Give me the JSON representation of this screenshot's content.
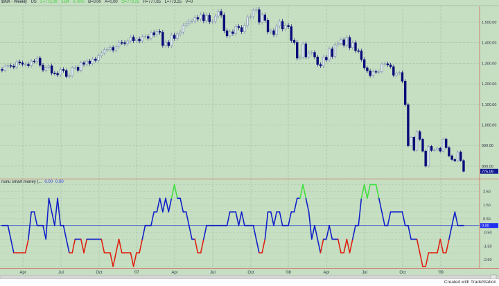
{
  "header": {
    "symbol": "$INX - Weekly",
    "exchange": "US",
    "last": "L=775.09",
    "change": "5.84",
    "change_pct": "0.76%",
    "bid": "B=0.00",
    "ask": "A=0.00",
    "open": "O=773.25",
    "high": "H=777.85",
    "low": "L=773.25",
    "volume": "V=0"
  },
  "indicator_header": {
    "name": "nunu smart money (...",
    "value1": "0.00",
    "value2": "0.00"
  },
  "footer": {
    "credit": "Created with TradeStation"
  },
  "colors": {
    "background": "#c6dec2",
    "down_candle": "#0a0a7a",
    "up_candle": "#7f8fb0",
    "indicator_line": "#1020c8",
    "indicator_low": "#e02010",
    "indicator_high": "#40e040",
    "zero_line": "#4060d0",
    "panel_border": "#d08070"
  },
  "chart_data": [
    {
      "type": "candlestick",
      "title": "$INX - Weekly",
      "period": "weekly",
      "x_tick_labels": [
        "Apr",
        "Jul",
        "Oct",
        "'07",
        "Apr",
        "Jul",
        "Oct",
        "'08",
        "Apr",
        "Jul",
        "Oct",
        "'09"
      ],
      "y_tick_labels": [
        "1,500.00",
        "1,400.00",
        "1,300.00",
        "1,200.00",
        "1,100.00",
        "1,000.00",
        "900.00",
        "800.00"
      ],
      "ylim": [
        750,
        1590
      ],
      "last_value_label": "775.09",
      "grid": true,
      "closes": [
        1266,
        1287,
        1289,
        1287,
        1281,
        1307,
        1302,
        1295,
        1295,
        1289,
        1311,
        1310,
        1325,
        1291,
        1267,
        1280,
        1288,
        1252,
        1251,
        1244,
        1270,
        1265,
        1236,
        1240,
        1278,
        1280,
        1266,
        1302,
        1295,
        1311,
        1299,
        1321,
        1314,
        1336,
        1350,
        1366,
        1368,
        1377,
        1364,
        1380,
        1401,
        1400,
        1396,
        1409,
        1427,
        1410,
        1418,
        1409,
        1430,
        1430,
        1422,
        1449,
        1438,
        1455,
        1451,
        1387,
        1402,
        1386,
        1437,
        1421,
        1443,
        1452,
        1484,
        1495,
        1505,
        1505,
        1522,
        1515,
        1536,
        1507,
        1533,
        1502,
        1503,
        1530,
        1552,
        1534,
        1458,
        1433,
        1453,
        1445,
        1479,
        1474,
        1454,
        1484,
        1525,
        1527,
        1557,
        1561,
        1500,
        1535,
        1509,
        1453,
        1458,
        1440,
        1481,
        1504,
        1467,
        1484,
        1478,
        1411,
        1401,
        1325,
        1330,
        1395,
        1331,
        1349,
        1353,
        1331,
        1294,
        1288,
        1330,
        1316,
        1370,
        1333,
        1390,
        1398,
        1414,
        1388,
        1425,
        1376,
        1400,
        1361,
        1360,
        1318,
        1278,
        1263,
        1240,
        1260,
        1257,
        1260,
        1297,
        1298,
        1292,
        1283,
        1242,
        1252,
        1255,
        1213,
        1099,
        899,
        940,
        877,
        968,
        930,
        873,
        800,
        896,
        876,
        879,
        887,
        873,
        931,
        890,
        850,
        832,
        826,
        869,
        827,
        775.09
      ]
    },
    {
      "type": "line",
      "title": "nunu smart money (...",
      "y_tick_labels": [
        "2.50",
        "1.50",
        "0.50",
        "-0.50",
        "-1.50",
        "-2.50"
      ],
      "ylim": [
        -3.1,
        3.1
      ],
      "last_value_label": "0.00",
      "grid": true,
      "values": [
        0,
        0,
        0,
        -1,
        -2,
        -2,
        -2,
        -2,
        -2,
        -1,
        1,
        1,
        0,
        0,
        0,
        -1,
        2,
        1,
        0,
        2,
        0,
        0,
        -1,
        -2,
        -2,
        -1,
        -1,
        -1,
        -2,
        -1,
        -1,
        -1,
        -1,
        -1,
        -1,
        -2,
        -2,
        -2,
        -3,
        -2,
        -1,
        -2,
        -2,
        -2,
        -2,
        -3,
        -2,
        -2,
        -1,
        0,
        0,
        0,
        1,
        1,
        2,
        1,
        2,
        1,
        2,
        3,
        2,
        2,
        1,
        1,
        0,
        -1,
        -1,
        -2,
        -2,
        -1,
        0,
        0,
        0,
        0,
        0,
        0,
        0,
        0,
        1,
        1,
        1,
        0,
        1,
        0,
        0,
        0,
        0,
        -1,
        -2,
        -2,
        -1,
        1,
        1,
        0,
        1,
        1,
        0,
        0,
        0,
        1,
        1,
        2,
        2,
        3,
        2,
        1,
        -1,
        0,
        -1,
        -2,
        -1,
        -1,
        0,
        -1,
        -1,
        -1,
        -2,
        -2,
        -1,
        -2,
        -1,
        0,
        0,
        2,
        3,
        2,
        3,
        3,
        3,
        2,
        1,
        0,
        0,
        1,
        1,
        1,
        1,
        1,
        0,
        0,
        -1,
        -1,
        -1,
        -2,
        -3,
        -3,
        -2,
        -2,
        -2,
        -2,
        -1,
        -2,
        -2,
        -1,
        0,
        1,
        0,
        0,
        0
      ]
    }
  ]
}
